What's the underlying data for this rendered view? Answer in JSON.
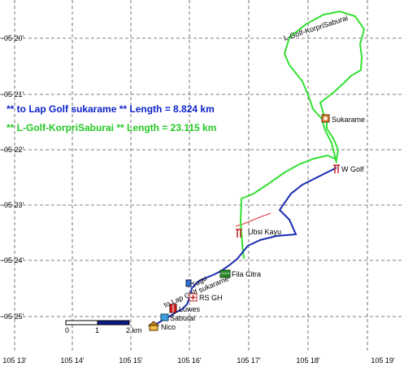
{
  "map": {
    "lat_labels": [
      "-05 20'",
      "-05 21'",
      "-05 22'",
      "-05 23'",
      "-05 24'",
      "-05 25'"
    ],
    "lon_labels": [
      "105 13'",
      "105 14'",
      "105 15'",
      "105 16'",
      "105 17'",
      "105 18'",
      "105 19'"
    ],
    "legend": [
      {
        "text": "**  to Lap Golf sukarame ** Length = 8.824 km",
        "color": "#0a1fc8"
      },
      {
        "text": "**  L-Golf-KorpriSaburai ** Length = 23.115 km",
        "color": "#22c822"
      }
    ],
    "tracks": {
      "green_label": "L-Golf-KorpriSaburai",
      "blue_label": "to Lap Golf sukarame",
      "colors": {
        "green": "#33e033",
        "blue": "#1a2db0",
        "red": "#e03030"
      }
    },
    "pois": [
      {
        "name": "Sukarame",
        "icon": "building-icon"
      },
      {
        "name": "W Golf",
        "icon": "golf-flag-icon"
      },
      {
        "name": "Ubsi Kayu",
        "icon": "golf-flag-icon"
      },
      {
        "name": "Fila Citra",
        "icon": "camp-icon"
      },
      {
        "name": "Tugu",
        "icon": "monument-icon"
      },
      {
        "name": "RS GH",
        "icon": "hospital-icon"
      },
      {
        "name": "Luwes",
        "icon": "shop-icon"
      },
      {
        "name": "Saburai",
        "icon": "marker-icon"
      },
      {
        "name": "Nico",
        "icon": "house-icon"
      }
    ],
    "scale": {
      "zero": "0",
      "one": "1",
      "two_km": "2 km"
    }
  }
}
